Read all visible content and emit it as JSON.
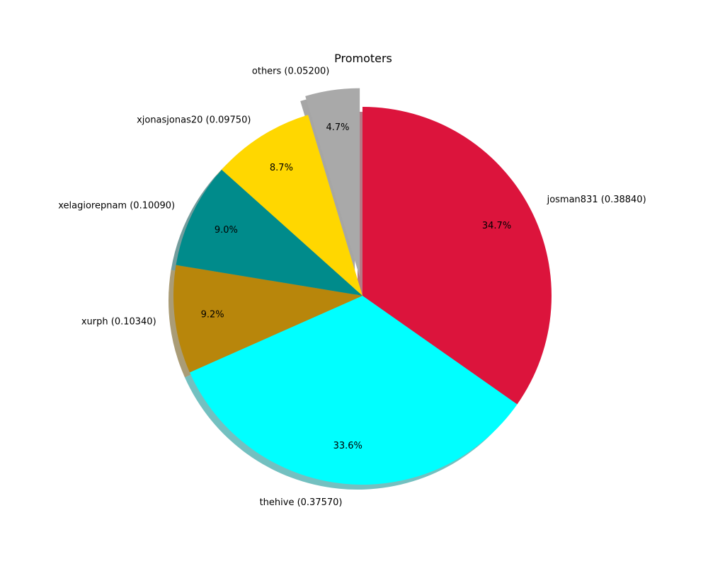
{
  "chart_data": {
    "type": "pie",
    "title": "Promoters",
    "start_angle_deg": 90,
    "direction": "clockwise",
    "shadow": true,
    "slices": [
      {
        "label": "josman831 (0.38840)",
        "value": 0.3884,
        "pct_label": "34.7%",
        "color": "#DC143C",
        "explode": 0
      },
      {
        "label": "thehive (0.37570)",
        "value": 0.3757,
        "pct_label": "33.6%",
        "color": "#00FFFF",
        "explode": 0
      },
      {
        "label": "xurph (0.10340)",
        "value": 0.1034,
        "pct_label": "9.2%",
        "color": "#B8860B",
        "explode": 0
      },
      {
        "label": "xelagiorepnam (0.10090)",
        "value": 0.1009,
        "pct_label": "9.0%",
        "color": "#008B8B",
        "explode": 0
      },
      {
        "label": "xjonasjonas20 (0.09750)",
        "value": 0.0975,
        "pct_label": "8.7%",
        "color": "#FFD700",
        "explode": 0
      },
      {
        "label": "others (0.05200)",
        "value": 0.052,
        "pct_label": "4.7%",
        "color": "#A9A9A9",
        "explode": 0.1
      }
    ]
  }
}
